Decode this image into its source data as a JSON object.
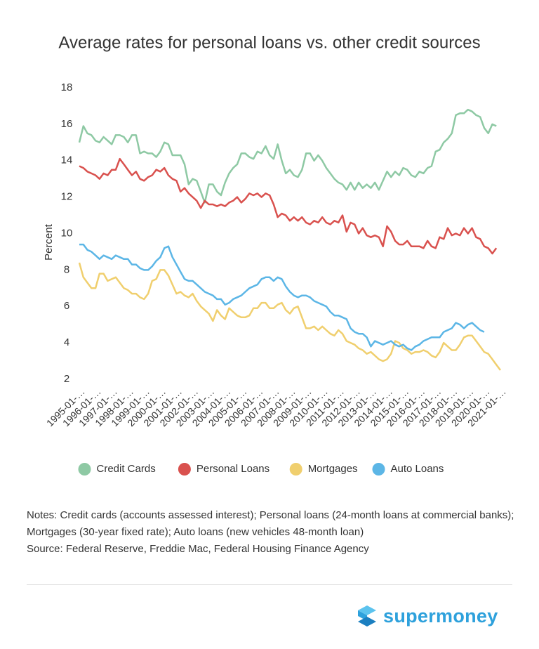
{
  "chart_data": {
    "type": "line",
    "title": "Average rates for personal loans vs. other credit sources",
    "y_label": "Percent",
    "legend": "bottom",
    "ylim": [
      2,
      18
    ],
    "yticks": [
      2,
      4,
      6,
      8,
      10,
      12,
      14,
      16,
      18
    ],
    "categories": [
      "1995-01-…",
      null,
      null,
      null,
      "1996-01-…",
      null,
      null,
      null,
      "1997-01-…",
      null,
      null,
      null,
      "1998-01-…",
      null,
      null,
      null,
      "1999-01-…",
      null,
      null,
      null,
      "2000-01-…",
      null,
      null,
      null,
      "2001-01-…",
      null,
      null,
      null,
      "2002-01-…",
      null,
      null,
      null,
      "2003-01-…",
      null,
      null,
      null,
      "2004-01-…",
      null,
      null,
      null,
      "2005-01-…",
      null,
      null,
      null,
      "2006-01-…",
      null,
      null,
      null,
      "2007-01-…",
      null,
      null,
      null,
      "2008-01-…",
      null,
      null,
      null,
      "2009-01-…",
      null,
      null,
      null,
      "2010-01-…",
      null,
      null,
      null,
      "2011-01-…",
      null,
      null,
      null,
      "2012-01-…",
      null,
      null,
      null,
      "2013-01-…",
      null,
      null,
      null,
      "2014-01-…",
      null,
      null,
      null,
      "2015-01-…",
      null,
      null,
      null,
      "2016-01-…",
      null,
      null,
      null,
      "2017-01-…",
      null,
      null,
      null,
      "2018-01-…",
      null,
      null,
      null,
      "2019-01-…",
      null,
      null,
      null,
      "2020-01-…",
      null,
      null,
      null,
      "2021-01-…"
    ],
    "series": [
      {
        "name": "Credit Cards",
        "color": "#8ec9a4",
        "values": [
          15.0,
          15.9,
          15.5,
          15.4,
          15.1,
          15.0,
          15.3,
          15.1,
          14.9,
          15.4,
          15.4,
          15.3,
          15.0,
          15.4,
          15.4,
          14.4,
          14.5,
          14.4,
          14.4,
          14.2,
          14.5,
          15.0,
          14.9,
          14.3,
          14.3,
          14.3,
          13.8,
          12.7,
          13.0,
          12.9,
          12.3,
          11.7,
          12.7,
          12.7,
          12.3,
          12.1,
          12.8,
          13.3,
          13.6,
          13.8,
          14.4,
          14.4,
          14.2,
          14.1,
          14.5,
          14.4,
          14.8,
          14.3,
          14.1,
          14.9,
          14.0,
          13.3,
          13.5,
          13.2,
          13.1,
          13.5,
          14.4,
          14.4,
          14.0,
          14.3,
          14.0,
          13.6,
          13.3,
          13.0,
          12.8,
          12.7,
          12.4,
          12.8,
          12.4,
          12.8,
          12.5,
          12.7,
          12.5,
          12.8,
          12.4,
          12.9,
          13.4,
          13.1,
          13.4,
          13.2,
          13.6,
          13.5,
          13.2,
          13.1,
          13.4,
          13.3,
          13.6,
          13.7,
          14.5,
          14.6,
          15.0,
          15.2,
          15.5,
          16.5,
          16.6,
          16.6,
          16.8,
          16.7,
          16.5,
          16.4,
          15.8,
          15.5,
          16.0,
          15.9,
          null
        ]
      },
      {
        "name": "Personal Loans",
        "color": "#d9514e",
        "values": [
          13.7,
          13.6,
          13.4,
          13.3,
          13.2,
          13.0,
          13.3,
          13.2,
          13.5,
          13.5,
          14.1,
          13.8,
          13.5,
          13.2,
          13.4,
          13.0,
          12.9,
          13.1,
          13.2,
          13.5,
          13.4,
          13.6,
          13.2,
          13.0,
          12.9,
          12.3,
          12.5,
          12.2,
          12.0,
          11.8,
          11.4,
          11.8,
          11.6,
          11.6,
          11.5,
          11.6,
          11.5,
          11.7,
          11.8,
          12.0,
          11.7,
          11.9,
          12.2,
          12.1,
          12.2,
          12.0,
          12.2,
          12.1,
          11.6,
          10.9,
          11.1,
          11.0,
          10.7,
          10.9,
          10.7,
          10.9,
          10.6,
          10.5,
          10.7,
          10.6,
          10.9,
          10.6,
          10.5,
          10.7,
          10.6,
          11.0,
          10.1,
          10.6,
          10.5,
          10.0,
          10.3,
          9.9,
          9.8,
          9.9,
          9.8,
          9.3,
          10.4,
          10.1,
          9.6,
          9.4,
          9.4,
          9.6,
          9.3,
          9.3,
          9.3,
          9.2,
          9.6,
          9.3,
          9.2,
          9.8,
          9.7,
          10.3,
          9.9,
          10.0,
          9.9,
          10.3,
          10.0,
          10.3,
          9.8,
          9.7,
          9.3,
          9.2,
          8.9,
          9.2,
          null
        ]
      },
      {
        "name": "Mortgages",
        "color": "#f0cf6e",
        "values": [
          8.4,
          7.6,
          7.3,
          7.0,
          7.0,
          7.8,
          7.8,
          7.4,
          7.5,
          7.6,
          7.3,
          7.0,
          6.9,
          6.7,
          6.7,
          6.5,
          6.4,
          6.7,
          7.4,
          7.5,
          8.0,
          8.0,
          7.7,
          7.2,
          6.7,
          6.8,
          6.6,
          6.5,
          6.7,
          6.3,
          6.0,
          5.8,
          5.6,
          5.2,
          5.8,
          5.5,
          5.3,
          5.9,
          5.7,
          5.5,
          5.4,
          5.4,
          5.5,
          5.9,
          5.9,
          6.2,
          6.2,
          5.9,
          5.9,
          6.1,
          6.2,
          5.8,
          5.6,
          5.9,
          6.0,
          5.4,
          4.8,
          4.8,
          4.9,
          4.7,
          4.9,
          4.7,
          4.5,
          4.4,
          4.7,
          4.5,
          4.1,
          4.0,
          3.9,
          3.7,
          3.6,
          3.4,
          3.5,
          3.3,
          3.1,
          3.0,
          3.1,
          3.4,
          4.1,
          4.0,
          3.7,
          3.6,
          3.4,
          3.5,
          3.5,
          3.6,
          3.5,
          3.3,
          3.2,
          3.5,
          4.0,
          3.8,
          3.6,
          3.6,
          3.9,
          4.3,
          4.4,
          4.4,
          4.1,
          3.8,
          3.5,
          3.4,
          3.1,
          2.8,
          2.5
        ]
      },
      {
        "name": "Auto Loans",
        "color": "#5cb6e6",
        "values": [
          9.4,
          9.4,
          9.1,
          9.0,
          8.8,
          8.6,
          8.8,
          8.7,
          8.6,
          8.8,
          8.7,
          8.6,
          8.6,
          8.3,
          8.3,
          8.1,
          8.0,
          8.0,
          8.2,
          8.5,
          8.7,
          9.2,
          9.3,
          8.7,
          8.3,
          7.9,
          7.5,
          7.4,
          7.4,
          7.2,
          7.0,
          6.8,
          6.7,
          6.6,
          6.4,
          6.4,
          6.1,
          6.2,
          6.4,
          6.5,
          6.6,
          6.8,
          7.0,
          7.1,
          7.2,
          7.5,
          7.6,
          7.6,
          7.4,
          7.6,
          7.5,
          7.1,
          6.8,
          6.6,
          6.5,
          6.6,
          6.6,
          6.5,
          6.3,
          6.2,
          6.1,
          6.0,
          5.7,
          5.5,
          5.5,
          5.4,
          5.3,
          4.8,
          4.6,
          4.5,
          4.5,
          4.3,
          3.8,
          4.1,
          4.0,
          3.9,
          4.0,
          4.1,
          3.9,
          3.8,
          3.9,
          3.7,
          3.6,
          3.8,
          3.9,
          4.1,
          4.2,
          4.3,
          4.3,
          4.3,
          4.6,
          4.7,
          4.8,
          5.1,
          5.0,
          4.8,
          5.0,
          5.1,
          4.9,
          4.7,
          4.6,
          null,
          null,
          null,
          null
        ]
      }
    ]
  },
  "notes": "Notes: Credit cards (accounts assessed interest); Personal loans (24-month loans at commercial banks); Mortgages (30-year fixed rate); Auto loans (new vehicles 48-month loan)",
  "source": "Source: Federal Reserve, Freddie Mac, Federal Housing Finance Agency",
  "brand": "supermoney"
}
